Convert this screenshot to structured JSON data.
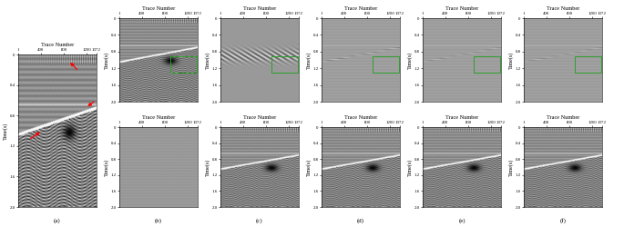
{
  "chart_data": [
    {
      "type": "image",
      "title": "(a)",
      "xlabel": "Trace Number",
      "ylabel": "Time(s)",
      "xlim": [
        1,
        1372
      ],
      "ylim": [
        2.0,
        0
      ],
      "xticks": [
        1,
        400,
        800,
        1200,
        1372
      ],
      "yticks": [
        0,
        0.4,
        0.8,
        1.2,
        1.6,
        2.0
      ]
    },
    {
      "type": "image",
      "xlabel": "Trace Number",
      "ylabel": "Time(s)",
      "xlim": [
        1,
        1372
      ],
      "ylim": [
        2.0,
        0
      ],
      "xticks": [
        1,
        400,
        800,
        1200,
        1372
      ],
      "yticks": [
        0,
        0.4,
        0.8,
        1.2,
        1.6,
        2.0
      ]
    },
    {
      "type": "image",
      "title": "(b)",
      "xlabel": "Trace Number",
      "ylabel": "Time(s)",
      "xlim": [
        1,
        1372
      ],
      "ylim": [
        2.0,
        0
      ],
      "xticks": [
        1,
        400,
        800,
        1200,
        1372
      ],
      "yticks": [
        0,
        0.4,
        0.8,
        1.2,
        1.6,
        2.0
      ]
    },
    {
      "type": "image",
      "xlabel": "Trace Number",
      "ylabel": "Time(s)",
      "xlim": [
        1,
        1372
      ],
      "ylim": [
        2.0,
        0
      ],
      "xticks": [
        1,
        400,
        800,
        1200,
        1372
      ],
      "yticks": [
        0,
        0.4,
        0.8,
        1.2,
        1.6,
        2.0
      ]
    },
    {
      "type": "image",
      "title": "(c)",
      "xlabel": "Trace Number",
      "ylabel": "Time(s)",
      "xlim": [
        1,
        1372
      ],
      "ylim": [
        2.0,
        0
      ],
      "xticks": [
        1,
        400,
        800,
        1200,
        1372
      ],
      "yticks": [
        0,
        0.4,
        0.8,
        1.2,
        1.6,
        2.0
      ]
    },
    {
      "type": "image",
      "xlabel": "Trace Number",
      "ylabel": "Time(s)",
      "xlim": [
        1,
        1372
      ],
      "ylim": [
        2.0,
        0
      ],
      "xticks": [
        1,
        400,
        800,
        1200,
        1372
      ],
      "yticks": [
        0,
        0.4,
        0.8,
        1.2,
        1.6,
        2.0
      ]
    },
    {
      "type": "image",
      "title": "(d)",
      "xlabel": "Trace Number",
      "ylabel": "Time(s)",
      "xlim": [
        1,
        1372
      ],
      "ylim": [
        2.0,
        0
      ],
      "xticks": [
        1,
        400,
        800,
        1200,
        1372
      ],
      "yticks": [
        0,
        0.4,
        0.8,
        1.2,
        1.6,
        2.0
      ]
    },
    {
      "type": "image",
      "xlabel": "Trace Number",
      "ylabel": "Time(s)",
      "xlim": [
        1,
        1372
      ],
      "ylim": [
        2.0,
        0
      ],
      "xticks": [
        1,
        400,
        800,
        1200,
        1372
      ],
      "yticks": [
        0,
        0.4,
        0.8,
        1.2,
        1.6,
        2.0
      ]
    },
    {
      "type": "image",
      "title": "(e)",
      "xlabel": "Trace Number",
      "ylabel": "Time(s)",
      "xlim": [
        1,
        1372
      ],
      "ylim": [
        2.0,
        0
      ],
      "xticks": [
        1,
        400,
        800,
        1200,
        1372
      ],
      "yticks": [
        0,
        0.4,
        0.8,
        1.2,
        1.6,
        2.0
      ]
    },
    {
      "type": "image",
      "xlabel": "Trace Number",
      "ylabel": "Time(s)",
      "xlim": [
        1,
        1372
      ],
      "ylim": [
        2.0,
        0
      ],
      "xticks": [
        1,
        400,
        800,
        1200,
        1372
      ],
      "yticks": [
        0,
        0.4,
        0.8,
        1.2,
        1.6,
        2.0
      ]
    },
    {
      "type": "image",
      "title": "(f)",
      "xlabel": "Trace Number",
      "ylabel": "Time(s)",
      "xlim": [
        1,
        1372
      ],
      "ylim": [
        2.0,
        0
      ],
      "xticks": [
        1,
        400,
        800,
        1200,
        1372
      ],
      "yticks": [
        0,
        0.4,
        0.8,
        1.2,
        1.6,
        2.0
      ]
    }
  ]
}
